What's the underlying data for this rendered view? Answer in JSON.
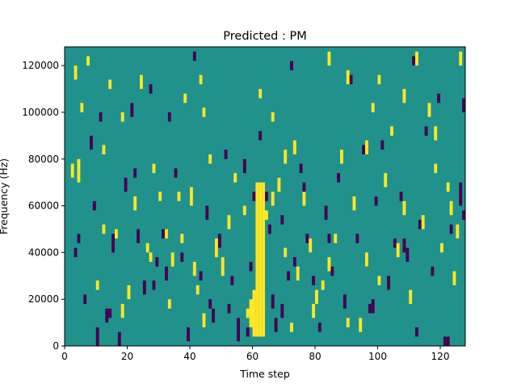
{
  "chart_data": {
    "type": "heatmap",
    "title": "Predicted : PM",
    "xlabel": "Time step",
    "ylabel": "Frequency (Hz)",
    "xlim": [
      0,
      128
    ],
    "ylim": [
      0,
      128000
    ],
    "x_ticks": [
      0,
      20,
      40,
      60,
      80,
      100,
      120
    ],
    "y_ticks": [
      0,
      20000,
      40000,
      60000,
      80000,
      100000,
      120000
    ],
    "x_tick_labels": [
      "0",
      "20",
      "40",
      "60",
      "80",
      "100",
      "120"
    ],
    "y_tick_labels": [
      "0",
      "20000",
      "40000",
      "60000",
      "80000",
      "100000",
      "120000"
    ],
    "grid": false,
    "colormap": {
      "low": "#440154",
      "mid": "#21918c",
      "high": "#fde725"
    },
    "background_level": "mid",
    "high_cells": [
      [
        61,
        4000,
        70000
      ],
      [
        62,
        4000,
        70000
      ],
      [
        63,
        4000,
        70000
      ],
      [
        60,
        4000,
        24000
      ],
      [
        59,
        8000,
        20000
      ],
      [
        58,
        12000,
        16000
      ],
      [
        48,
        38000,
        46000
      ],
      [
        50,
        30000,
        38000
      ],
      [
        44,
        8000,
        14000
      ],
      [
        40,
        60000,
        68000
      ],
      [
        36,
        62000,
        66000
      ],
      [
        33,
        16000,
        20000
      ],
      [
        2,
        72000,
        78000
      ],
      [
        3,
        114000,
        120000
      ],
      [
        4,
        70000,
        80000
      ],
      [
        5,
        100000,
        104000
      ],
      [
        7,
        120000,
        124000
      ],
      [
        10,
        24000,
        28000
      ],
      [
        12,
        82000,
        86000
      ],
      [
        14,
        110000,
        114000
      ],
      [
        18,
        96000,
        100000
      ],
      [
        20,
        20000,
        26000
      ],
      [
        22,
        58000,
        64000
      ],
      [
        24,
        110000,
        116000
      ],
      [
        26,
        40000,
        44000
      ],
      [
        28,
        74000,
        78000
      ],
      [
        30,
        62000,
        66000
      ],
      [
        32,
        46000,
        50000
      ],
      [
        34,
        34000,
        40000
      ],
      [
        38,
        104000,
        108000
      ],
      [
        42,
        22000,
        26000
      ],
      [
        44,
        98000,
        102000
      ],
      [
        46,
        78000,
        82000
      ],
      [
        52,
        50000,
        56000
      ],
      [
        54,
        70000,
        74000
      ],
      [
        57,
        56000,
        60000
      ],
      [
        66,
        96000,
        100000
      ],
      [
        68,
        66000,
        72000
      ],
      [
        70,
        78000,
        84000
      ],
      [
        73,
        82000,
        88000
      ],
      [
        74,
        28000,
        34000
      ],
      [
        78,
        40000,
        46000
      ],
      [
        80,
        18000,
        24000
      ],
      [
        82,
        24000,
        28000
      ],
      [
        84,
        120000,
        126000
      ],
      [
        86,
        44000,
        48000
      ],
      [
        88,
        78000,
        84000
      ],
      [
        90,
        112000,
        118000
      ],
      [
        92,
        58000,
        64000
      ],
      [
        94,
        6000,
        12000
      ],
      [
        96,
        34000,
        40000
      ],
      [
        98,
        100000,
        104000
      ],
      [
        100,
        26000,
        30000
      ],
      [
        102,
        68000,
        74000
      ],
      [
        104,
        90000,
        94000
      ],
      [
        106,
        38000,
        44000
      ],
      [
        108,
        104000,
        110000
      ],
      [
        110,
        18000,
        24000
      ],
      [
        112,
        120000,
        126000
      ],
      [
        114,
        50000,
        56000
      ],
      [
        116,
        98000,
        104000
      ],
      [
        118,
        88000,
        94000
      ],
      [
        120,
        40000,
        44000
      ],
      [
        122,
        66000,
        70000
      ],
      [
        124,
        26000,
        32000
      ],
      [
        125,
        46000,
        52000
      ],
      [
        126,
        120000,
        126000
      ],
      [
        12,
        48000,
        52000
      ],
      [
        16,
        46000,
        50000
      ],
      [
        18,
        12000,
        18000
      ],
      [
        27,
        36000,
        40000
      ],
      [
        37,
        44000,
        48000
      ],
      [
        41,
        30000,
        36000
      ],
      [
        43,
        112000,
        116000
      ],
      [
        62,
        106000,
        110000
      ],
      [
        64,
        54000,
        58000
      ],
      [
        66,
        60000,
        66000
      ],
      [
        70,
        38000,
        42000
      ],
      [
        72,
        6000,
        10000
      ],
      [
        76,
        60000,
        66000
      ],
      [
        79,
        12000,
        18000
      ],
      [
        84,
        32000,
        38000
      ],
      [
        90,
        8000,
        12000
      ],
      [
        96,
        82000,
        88000
      ],
      [
        100,
        112000,
        116000
      ],
      [
        108,
        56000,
        62000
      ],
      [
        118,
        74000,
        78000
      ],
      [
        123,
        56000,
        62000
      ]
    ],
    "low_cells": [
      [
        3,
        38000,
        42000
      ],
      [
        4,
        44000,
        48000
      ],
      [
        6,
        18000,
        22000
      ],
      [
        9,
        58000,
        62000
      ],
      [
        10,
        0,
        8000
      ],
      [
        11,
        96000,
        100000
      ],
      [
        13,
        10000,
        16000
      ],
      [
        15,
        40000,
        48000
      ],
      [
        17,
        0,
        6000
      ],
      [
        19,
        66000,
        72000
      ],
      [
        21,
        98000,
        104000
      ],
      [
        23,
        44000,
        50000
      ],
      [
        25,
        22000,
        28000
      ],
      [
        27,
        108000,
        112000
      ],
      [
        29,
        34000,
        38000
      ],
      [
        31,
        46000,
        50000
      ],
      [
        33,
        96000,
        100000
      ],
      [
        35,
        72000,
        76000
      ],
      [
        37,
        36000,
        40000
      ],
      [
        39,
        2000,
        8000
      ],
      [
        41,
        122000,
        126000
      ],
      [
        43,
        28000,
        32000
      ],
      [
        45,
        54000,
        60000
      ],
      [
        47,
        10000,
        16000
      ],
      [
        49,
        42000,
        48000
      ],
      [
        51,
        80000,
        84000
      ],
      [
        53,
        26000,
        30000
      ],
      [
        55,
        2000,
        10000
      ],
      [
        57,
        74000,
        80000
      ],
      [
        59,
        32000,
        36000
      ],
      [
        60,
        62000,
        66000
      ],
      [
        62,
        88000,
        92000
      ],
      [
        64,
        62000,
        66000
      ],
      [
        65,
        48000,
        52000
      ],
      [
        66,
        16000,
        22000
      ],
      [
        67,
        6000,
        12000
      ],
      [
        69,
        52000,
        56000
      ],
      [
        71,
        28000,
        32000
      ],
      [
        72,
        118000,
        122000
      ],
      [
        75,
        74000,
        78000
      ],
      [
        77,
        44000,
        48000
      ],
      [
        79,
        26000,
        30000
      ],
      [
        81,
        6000,
        10000
      ],
      [
        83,
        54000,
        60000
      ],
      [
        85,
        30000,
        34000
      ],
      [
        87,
        70000,
        74000
      ],
      [
        89,
        16000,
        22000
      ],
      [
        91,
        112000,
        116000
      ],
      [
        93,
        44000,
        48000
      ],
      [
        95,
        82000,
        86000
      ],
      [
        97,
        14000,
        18000
      ],
      [
        99,
        60000,
        64000
      ],
      [
        101,
        84000,
        88000
      ],
      [
        103,
        24000,
        30000
      ],
      [
        105,
        42000,
        46000
      ],
      [
        107,
        62000,
        66000
      ],
      [
        109,
        36000,
        42000
      ],
      [
        111,
        120000,
        124000
      ],
      [
        113,
        50000,
        54000
      ],
      [
        115,
        90000,
        94000
      ],
      [
        117,
        30000,
        34000
      ],
      [
        119,
        104000,
        108000
      ],
      [
        121,
        0,
        4000
      ],
      [
        122,
        0,
        4000
      ],
      [
        123,
        48000,
        52000
      ],
      [
        126,
        60000,
        70000
      ],
      [
        127,
        54000,
        58000
      ],
      [
        127,
        100000,
        106000
      ],
      [
        112,
        4000,
        8000
      ],
      [
        108,
        40000,
        46000
      ],
      [
        98,
        14000,
        20000
      ],
      [
        96,
        34000,
        38000
      ],
      [
        84,
        44000,
        48000
      ],
      [
        76,
        64000,
        70000
      ],
      [
        73,
        34000,
        38000
      ],
      [
        69,
        12000,
        18000
      ],
      [
        58,
        4000,
        8000
      ],
      [
        55,
        6000,
        12000
      ],
      [
        52,
        14000,
        18000
      ],
      [
        46,
        16000,
        20000
      ],
      [
        40,
        60000,
        64000
      ],
      [
        32,
        28000,
        34000
      ],
      [
        28,
        24000,
        28000
      ],
      [
        22,
        72000,
        76000
      ],
      [
        14,
        12000,
        16000
      ],
      [
        8,
        84000,
        90000
      ]
    ]
  }
}
